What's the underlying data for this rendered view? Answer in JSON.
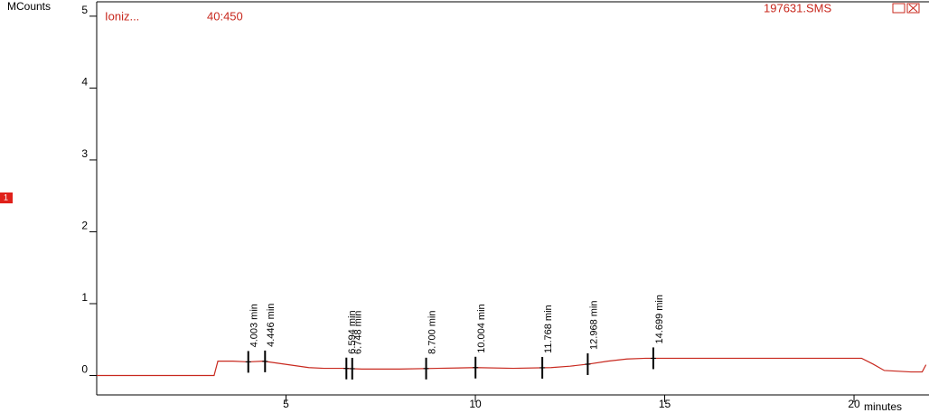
{
  "chart_data": {
    "type": "line",
    "y_label": "MCounts",
    "x_label": "minutes",
    "ion_label": "Ioniz...",
    "mass_range": "40:450",
    "file_name": "197631.SMS",
    "trace_number": "1",
    "xlim": [
      0,
      21.98
    ],
    "ylim": [
      -0.27,
      5.2
    ],
    "xticks": [
      5,
      10,
      15,
      20
    ],
    "yticks": [
      0,
      1,
      2,
      3,
      4,
      5
    ],
    "series": [
      {
        "color": "#c8281e",
        "x": [
          0,
          3.1,
          3.2,
          3.6,
          4.0,
          4.4,
          4.8,
          5.2,
          5.6,
          6.0,
          6.5,
          7.0,
          8.0,
          9.0,
          10.0,
          11.0,
          12.0,
          12.5,
          13.0,
          13.5,
          14.0,
          14.5,
          15,
          17,
          20.2,
          20.5,
          20.8,
          21.5,
          21.8,
          21.9
        ],
        "values": [
          0,
          0,
          0.2,
          0.2,
          0.19,
          0.2,
          0.17,
          0.14,
          0.11,
          0.1,
          0.1,
          0.09,
          0.09,
          0.1,
          0.11,
          0.1,
          0.11,
          0.13,
          0.16,
          0.2,
          0.23,
          0.24,
          0.24,
          0.24,
          0.24,
          0.16,
          0.07,
          0.05,
          0.05,
          0.15
        ]
      }
    ],
    "peaks": [
      {
        "time": 4.003,
        "label": "4.003 min"
      },
      {
        "time": 4.446,
        "label": "4.446 min"
      },
      {
        "time": 6.594,
        "label": "6.594 min"
      },
      {
        "time": 6.748,
        "label": "6.748 min"
      },
      {
        "time": 8.7,
        "label": "8.700 min"
      },
      {
        "time": 10.004,
        "label": "10.004 min"
      },
      {
        "time": 11.768,
        "label": "11.768 min"
      },
      {
        "time": 12.968,
        "label": "12.968 min"
      },
      {
        "time": 14.699,
        "label": "14.699 min"
      }
    ]
  }
}
